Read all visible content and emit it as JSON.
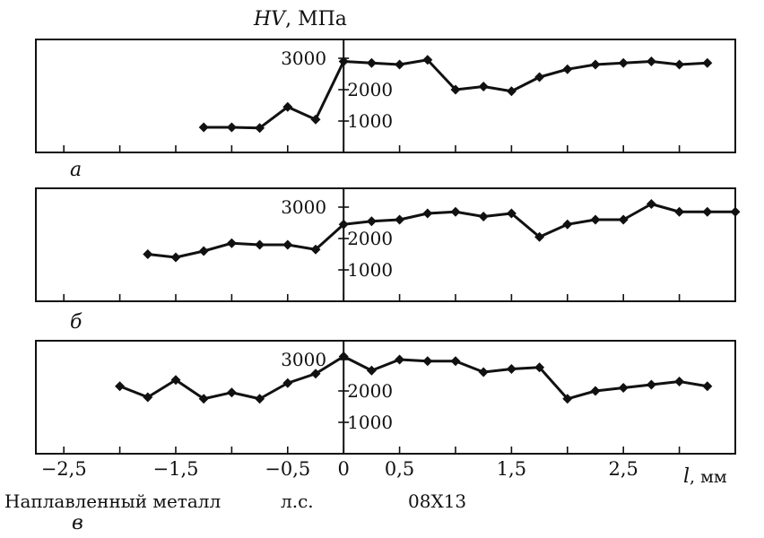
{
  "figure": {
    "y_title_var": "HV",
    "y_title_unit": ", МПа",
    "x_axis_var": "l",
    "x_axis_unit": ", мм",
    "caption_left": "Наплавленный металл",
    "caption_mid": "л.с.",
    "caption_right": "08Х13",
    "x_tick_labels": [
      "−2,5",
      "−1,5",
      "−0,5",
      "0",
      "0,5",
      "1,5",
      "2,5"
    ]
  },
  "chart_data": [
    {
      "type": "line",
      "panel_label": "а",
      "ylabel": "HV, МПа",
      "xlabel": "l, мм",
      "xlim": [
        -2.75,
        3.5
      ],
      "ylim": [
        0,
        3600
      ],
      "y_ticks": [
        1000,
        2000,
        3000
      ],
      "y_tick_labels": [
        "1000",
        "2000",
        "3000"
      ],
      "x": [
        -1.25,
        -1.0,
        -0.75,
        -0.5,
        -0.25,
        0.0,
        0.25,
        0.5,
        0.75,
        1.0,
        1.25,
        1.5,
        1.75,
        2.0,
        2.25,
        2.5,
        2.75,
        3.0,
        3.25
      ],
      "y": [
        800,
        800,
        780,
        1450,
        1050,
        2900,
        2850,
        2800,
        2950,
        2000,
        2100,
        1950,
        2400,
        2650,
        2800,
        2850,
        2900,
        2800,
        2850
      ]
    },
    {
      "type": "line",
      "panel_label": "б",
      "ylabel": "HV, МПа",
      "xlabel": "l, мм",
      "xlim": [
        -2.75,
        3.5
      ],
      "ylim": [
        0,
        3600
      ],
      "y_ticks": [
        1000,
        2000,
        3000
      ],
      "y_tick_labels": [
        "1000",
        "2000",
        "3000"
      ],
      "x": [
        -1.75,
        -1.5,
        -1.25,
        -1.0,
        -0.75,
        -0.5,
        -0.25,
        0.0,
        0.25,
        0.5,
        0.75,
        1.0,
        1.25,
        1.5,
        1.75,
        2.0,
        2.25,
        2.5,
        2.75,
        3.0,
        3.25,
        3.5
      ],
      "y": [
        1500,
        1400,
        1600,
        1850,
        1800,
        1800,
        1650,
        2450,
        2550,
        2600,
        2800,
        2850,
        2700,
        2800,
        2050,
        2450,
        2600,
        2600,
        3100,
        2850,
        2850,
        2850
      ]
    },
    {
      "type": "line",
      "panel_label": "в",
      "ylabel": "HV, МПа",
      "xlabel": "l, мм",
      "xlim": [
        -2.75,
        3.5
      ],
      "ylim": [
        0,
        3600
      ],
      "y_ticks": [
        1000,
        2000,
        3000
      ],
      "y_tick_labels": [
        "1000",
        "2000",
        "3000"
      ],
      "x": [
        -2.0,
        -1.75,
        -1.5,
        -1.25,
        -1.0,
        -0.75,
        -0.5,
        -0.25,
        0.0,
        0.25,
        0.5,
        0.75,
        1.0,
        1.25,
        1.5,
        1.75,
        2.0,
        2.25,
        2.5,
        2.75,
        3.0,
        3.25
      ],
      "y": [
        2150,
        1800,
        2350,
        1750,
        1950,
        1750,
        2250,
        2550,
        3100,
        2650,
        3000,
        2950,
        2950,
        2600,
        2700,
        2750,
        1750,
        2000,
        2100,
        2200,
        2300,
        2150
      ]
    }
  ]
}
